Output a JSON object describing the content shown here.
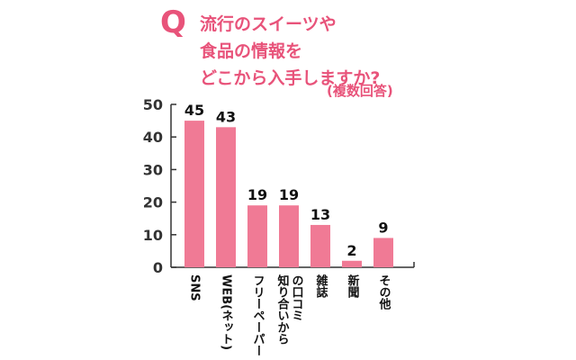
{
  "question": {
    "mark": "Q",
    "lines": [
      "流行のスイーツや",
      "食品の情報を",
      "どこから入手しますか?"
    ],
    "note": "(複数回答)"
  },
  "colors": {
    "accent": "#e8537a",
    "bar": "#f07a95",
    "axis": "#333333",
    "value_label": "#111111"
  },
  "chart_data": {
    "type": "bar",
    "title": "流行のスイーツや食品の情報をどこから入手しますか?",
    "subtitle": "(複数回答)",
    "categories": [
      "SNS",
      "WEB(ネット)",
      "フリーペーパー",
      "知り合いからの口コミ",
      "雑誌",
      "新聞",
      "その他"
    ],
    "category_lines": [
      [
        "SNS"
      ],
      [
        "WEB(ネット)"
      ],
      [
        "フリーペーパー"
      ],
      [
        "知り合いから",
        "の口コミ"
      ],
      [
        "雑誌"
      ],
      [
        "新聞"
      ],
      [
        "その他"
      ]
    ],
    "values": [
      45,
      43,
      19,
      19,
      13,
      2,
      9
    ],
    "xlabel": "",
    "ylabel": "",
    "ylim": [
      0,
      50
    ],
    "yticks": [
      0,
      10,
      20,
      30,
      40,
      50
    ],
    "grid": false,
    "legend": "none"
  }
}
